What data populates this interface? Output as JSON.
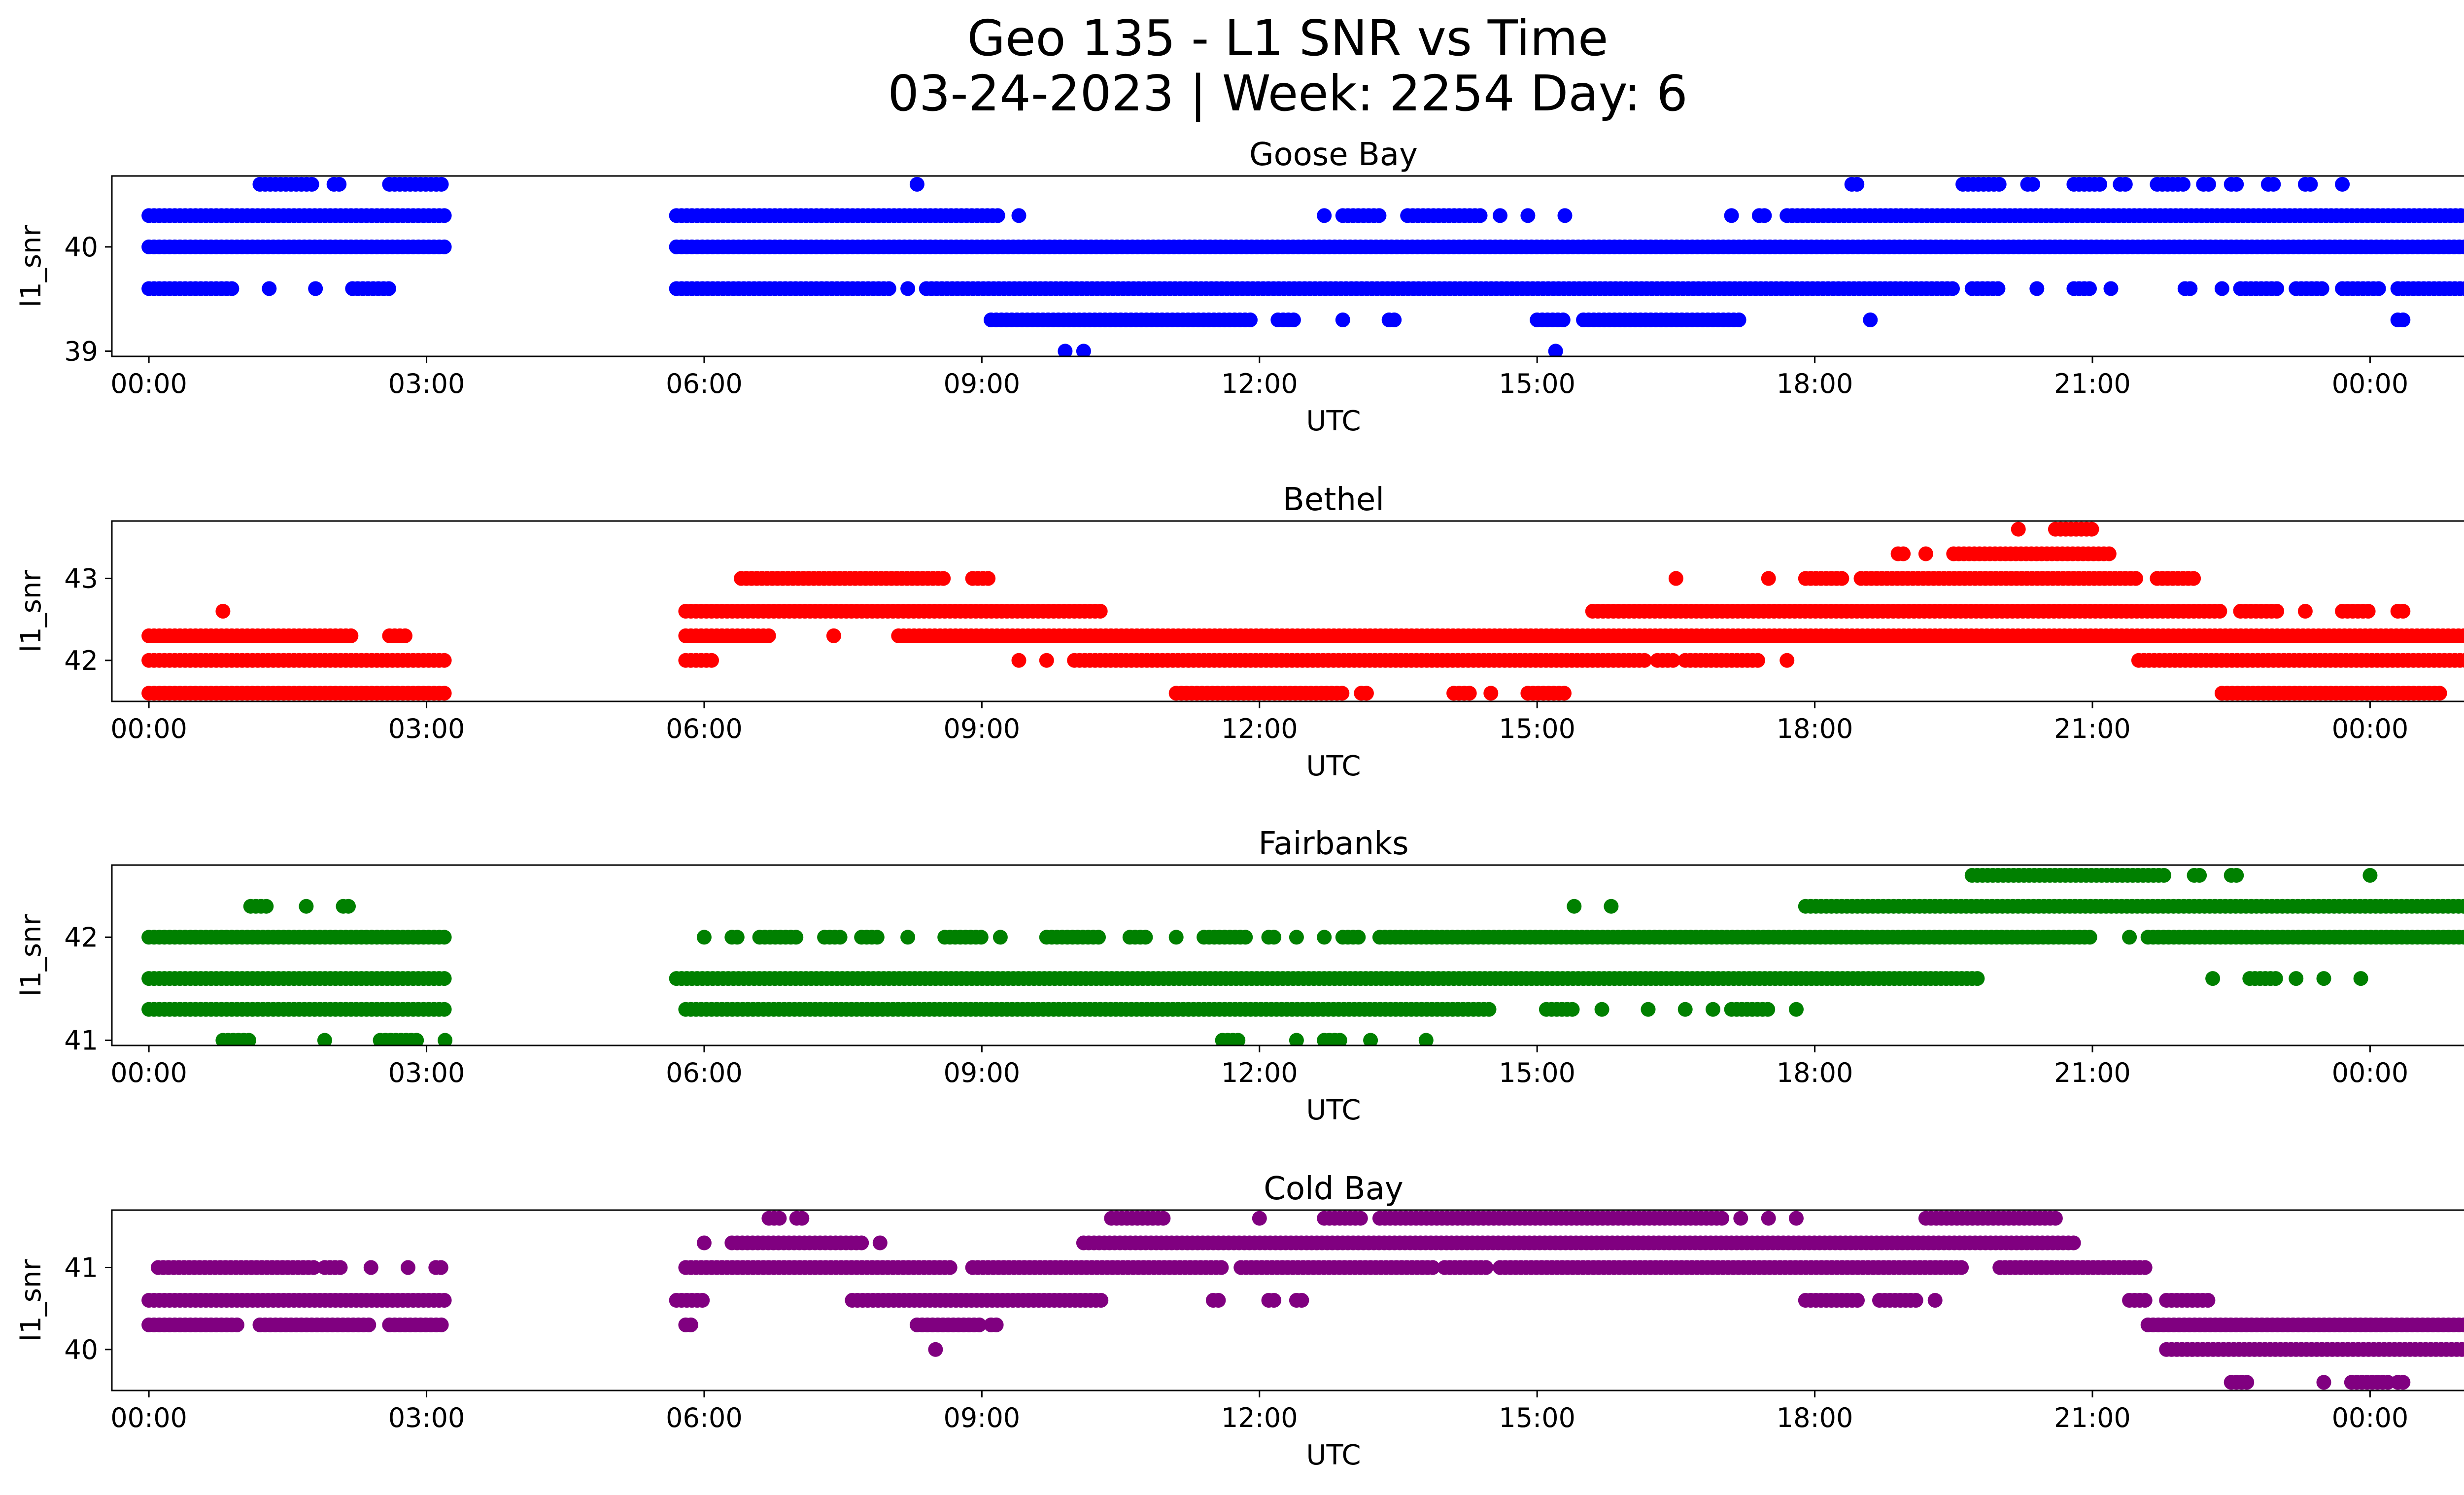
{
  "title_line1": "Geo 135 - L1 SNR vs Time",
  "title_line2": "03-24-2023 | Week: 2254 Day: 6",
  "chart_data": [
    {
      "type": "scatter",
      "title": "Goose Bay",
      "xlabel": "UTC",
      "ylabel": "l1_snr",
      "color": "#0000ff",
      "xlim": [
        -0.4,
        26.0
      ],
      "ylim": [
        38.95,
        40.68
      ],
      "xticks": [
        "00:00",
        "03:00",
        "06:00",
        "09:00",
        "12:00",
        "15:00",
        "18:00",
        "21:00",
        "00:00"
      ],
      "yticks": [
        39,
        40
      ],
      "bands": [
        {
          "y": 40.6,
          "segments": [
            [
              1.2,
              1.8
            ],
            [
              2.0,
              2.1
            ],
            [
              2.6,
              3.2
            ],
            [
              8.3,
              8.35
            ],
            [
              18.4,
              18.5
            ],
            [
              19.6,
              20.0
            ],
            [
              20.3,
              20.4
            ],
            [
              20.8,
              21.1
            ],
            [
              21.3,
              21.4
            ],
            [
              21.7,
              22.0
            ],
            [
              22.2,
              22.3
            ],
            [
              22.5,
              22.6
            ],
            [
              22.9,
              23.0
            ],
            [
              23.3,
              23.4
            ],
            [
              23.7,
              23.75
            ]
          ]
        },
        {
          "y": 40.3,
          "segments": [
            [
              0.0,
              3.2
            ],
            [
              5.7,
              9.2
            ],
            [
              9.4,
              9.45
            ],
            [
              12.7,
              12.75
            ],
            [
              12.9,
              13.3
            ],
            [
              13.6,
              14.4
            ],
            [
              14.6,
              14.65
            ],
            [
              14.9,
              14.95
            ],
            [
              15.3,
              15.35
            ],
            [
              17.1,
              17.15
            ],
            [
              17.4,
              17.5
            ],
            [
              17.7,
              26.0
            ]
          ]
        },
        {
          "y": 40.0,
          "segments": [
            [
              0.0,
              3.2
            ],
            [
              5.7,
              26.0
            ]
          ]
        },
        {
          "y": 39.6,
          "segments": [
            [
              0.0,
              0.9
            ],
            [
              1.3,
              1.35
            ],
            [
              1.8,
              1.85
            ],
            [
              2.2,
              2.6
            ],
            [
              5.7,
              8.0
            ],
            [
              8.2,
              8.25
            ],
            [
              8.4,
              19.5
            ],
            [
              19.7,
              20.0
            ],
            [
              20.4,
              20.45
            ],
            [
              20.8,
              21.0
            ],
            [
              21.2,
              21.25
            ],
            [
              22.0,
              22.1
            ],
            [
              22.4,
              22.45
            ],
            [
              22.6,
              23.0
            ],
            [
              23.2,
              23.5
            ],
            [
              23.7,
              24.1
            ],
            [
              24.3,
              26.0
            ]
          ]
        },
        {
          "y": 39.3,
          "segments": [
            [
              9.1,
              11.9
            ],
            [
              12.2,
              12.4
            ],
            [
              12.9,
              12.95
            ],
            [
              13.4,
              13.5
            ],
            [
              15.0,
              15.3
            ],
            [
              15.5,
              17.2
            ],
            [
              18.6,
              18.65
            ],
            [
              24.3,
              24.4
            ]
          ]
        },
        {
          "y": 39.0,
          "segments": [
            [
              9.9,
              9.95
            ],
            [
              10.1,
              10.15
            ],
            [
              15.2,
              15.25
            ]
          ]
        }
      ]
    },
    {
      "type": "scatter",
      "title": "Bethel",
      "xlabel": "UTC",
      "ylabel": "l1_snr",
      "color": "#ff0000",
      "xlim": [
        -0.4,
        26.0
      ],
      "ylim": [
        41.5,
        43.7
      ],
      "xticks": [
        "00:00",
        "03:00",
        "06:00",
        "09:00",
        "12:00",
        "15:00",
        "18:00",
        "21:00",
        "00:00"
      ],
      "yticks": [
        42,
        43
      ],
      "bands": [
        {
          "y": 43.6,
          "segments": [
            [
              20.2,
              20.25
            ],
            [
              20.6,
              21.0
            ]
          ]
        },
        {
          "y": 43.3,
          "segments": [
            [
              18.9,
              19.0
            ],
            [
              19.2,
              19.25
            ],
            [
              19.5,
              21.2
            ]
          ]
        },
        {
          "y": 43.0,
          "segments": [
            [
              6.4,
              8.6
            ],
            [
              8.9,
              9.1
            ],
            [
              16.5,
              16.55
            ],
            [
              17.5,
              17.55
            ],
            [
              17.9,
              18.3
            ],
            [
              18.5,
              21.5
            ],
            [
              21.7,
              22.1
            ]
          ]
        },
        {
          "y": 42.6,
          "segments": [
            [
              0.8,
              0.85
            ],
            [
              5.8,
              10.3
            ],
            [
              15.6,
              22.4
            ],
            [
              22.6,
              23.0
            ],
            [
              23.3,
              23.35
            ],
            [
              23.7,
              24.0
            ],
            [
              24.3,
              24.4
            ]
          ]
        },
        {
          "y": 42.3,
          "segments": [
            [
              0.0,
              2.2
            ],
            [
              2.6,
              2.8
            ],
            [
              5.8,
              6.7
            ],
            [
              7.4,
              7.45
            ],
            [
              8.1,
              26.0
            ]
          ]
        },
        {
          "y": 42.0,
          "segments": [
            [
              0.0,
              3.2
            ],
            [
              5.8,
              6.1
            ],
            [
              9.4,
              9.45
            ],
            [
              9.7,
              9.75
            ],
            [
              10.0,
              16.2
            ],
            [
              16.3,
              16.5
            ],
            [
              16.6,
              17.4
            ],
            [
              17.7,
              17.75
            ],
            [
              21.5,
              26.0
            ]
          ]
        },
        {
          "y": 41.6,
          "segments": [
            [
              0.0,
              3.2
            ],
            [
              11.1,
              12.9
            ],
            [
              13.1,
              13.2
            ],
            [
              14.1,
              14.3
            ],
            [
              14.5,
              14.55
            ],
            [
              14.9,
              15.3
            ],
            [
              22.4,
              24.8
            ]
          ]
        }
      ]
    },
    {
      "type": "scatter",
      "title": "Fairbanks",
      "xlabel": "UTC",
      "ylabel": "l1_snr",
      "color": "#008000",
      "xlim": [
        -0.4,
        26.0
      ],
      "ylim": [
        40.95,
        42.7
      ],
      "xticks": [
        "00:00",
        "03:00",
        "06:00",
        "09:00",
        "12:00",
        "15:00",
        "18:00",
        "21:00",
        "00:00"
      ],
      "yticks": [
        41,
        42
      ],
      "bands": [
        {
          "y": 42.6,
          "segments": [
            [
              19.7,
              21.8
            ],
            [
              22.1,
              22.2
            ],
            [
              22.5,
              22.6
            ],
            [
              24.0,
              24.05
            ]
          ]
        },
        {
          "y": 42.3,
          "segments": [
            [
              1.1,
              1.3
            ],
            [
              1.7,
              1.75
            ],
            [
              2.1,
              2.2
            ],
            [
              15.4,
              15.45
            ],
            [
              15.8,
              15.85
            ],
            [
              17.9,
              26.0
            ]
          ]
        },
        {
          "y": 42.0,
          "segments": [
            [
              0.0,
              3.2
            ],
            [
              6.0,
              6.05
            ],
            [
              6.3,
              6.4
            ],
            [
              6.6,
              7.0
            ],
            [
              7.3,
              7.5
            ],
            [
              7.7,
              7.9
            ],
            [
              8.2,
              8.25
            ],
            [
              8.6,
              9.0
            ],
            [
              9.2,
              9.25
            ],
            [
              9.7,
              10.3
            ],
            [
              10.6,
              10.8
            ],
            [
              11.1,
              11.15
            ],
            [
              11.4,
              11.9
            ],
            [
              12.1,
              12.2
            ],
            [
              12.4,
              12.45
            ],
            [
              12.7,
              12.75
            ],
            [
              12.9,
              13.1
            ],
            [
              13.3,
              21.0
            ],
            [
              21.4,
              21.45
            ],
            [
              21.6,
              26.0
            ]
          ]
        },
        {
          "y": 41.6,
          "segments": [
            [
              0.0,
              3.2
            ],
            [
              5.7,
              19.8
            ],
            [
              22.3,
              22.35
            ],
            [
              22.7,
              23.0
            ],
            [
              23.2,
              23.25
            ],
            [
              23.5,
              23.55
            ],
            [
              23.9,
              23.95
            ]
          ]
        },
        {
          "y": 41.3,
          "segments": [
            [
              0.0,
              3.2
            ],
            [
              5.8,
              14.5
            ],
            [
              15.1,
              15.4
            ],
            [
              15.7,
              15.75
            ],
            [
              16.2,
              16.25
            ],
            [
              16.6,
              16.65
            ],
            [
              16.9,
              16.95
            ],
            [
              17.1,
              17.5
            ],
            [
              17.8,
              17.85
            ]
          ]
        },
        {
          "y": 41.0,
          "segments": [
            [
              0.8,
              1.1
            ],
            [
              1.9,
              1.95
            ],
            [
              2.5,
              2.9
            ],
            [
              3.2,
              3.25
            ],
            [
              11.6,
              11.8
            ],
            [
              12.4,
              12.45
            ],
            [
              12.7,
              12.9
            ],
            [
              13.2,
              13.25
            ],
            [
              13.8,
              13.85
            ]
          ]
        }
      ]
    },
    {
      "type": "scatter",
      "title": "Cold Bay",
      "xlabel": "UTC",
      "ylabel": "l1_snr",
      "color": "#800080",
      "xlim": [
        -0.4,
        26.0
      ],
      "ylim": [
        39.5,
        41.7
      ],
      "xticks": [
        "00:00",
        "03:00",
        "06:00",
        "09:00",
        "12:00",
        "15:00",
        "18:00",
        "21:00",
        "00:00"
      ],
      "yticks": [
        40,
        41
      ],
      "bands": [
        {
          "y": 41.6,
          "segments": [
            [
              6.7,
              6.85
            ],
            [
              7.0,
              7.1
            ],
            [
              10.4,
              11.0
            ],
            [
              12.0,
              12.05
            ],
            [
              12.7,
              13.1
            ],
            [
              13.3,
              17.0
            ],
            [
              17.2,
              17.25
            ],
            [
              17.5,
              17.55
            ],
            [
              17.8,
              17.85
            ],
            [
              19.2,
              20.6
            ]
          ]
        },
        {
          "y": 41.3,
          "segments": [
            [
              6.0,
              6.05
            ],
            [
              6.3,
              7.7
            ],
            [
              7.9,
              7.95
            ],
            [
              10.1,
              20.8
            ]
          ]
        },
        {
          "y": 41.0,
          "segments": [
            [
              0.1,
              1.8
            ],
            [
              1.9,
              2.1
            ],
            [
              2.4,
              2.45
            ],
            [
              2.8,
              2.85
            ],
            [
              3.1,
              3.2
            ],
            [
              5.8,
              8.7
            ],
            [
              8.9,
              11.6
            ],
            [
              11.8,
              13.9
            ],
            [
              14.0,
              14.5
            ],
            [
              14.6,
              19.6
            ],
            [
              20.0,
              21.6
            ]
          ]
        },
        {
          "y": 40.6,
          "segments": [
            [
              0.0,
              3.2
            ],
            [
              5.7,
              6.0
            ],
            [
              7.6,
              10.3
            ],
            [
              11.5,
              11.6
            ],
            [
              12.1,
              12.2
            ],
            [
              12.4,
              12.5
            ],
            [
              17.9,
              18.5
            ],
            [
              18.7,
              19.1
            ],
            [
              19.3,
              19.35
            ],
            [
              21.4,
              21.6
            ],
            [
              21.8,
              22.3
            ]
          ]
        },
        {
          "y": 40.3,
          "segments": [
            [
              0.0,
              1.0
            ],
            [
              1.2,
              2.4
            ],
            [
              2.6,
              3.2
            ],
            [
              5.8,
              5.9
            ],
            [
              8.3,
              9.0
            ],
            [
              9.1,
              9.2
            ],
            [
              21.6,
              26.0
            ]
          ]
        },
        {
          "y": 40.0,
          "segments": [
            [
              8.5,
              8.55
            ],
            [
              21.8,
              26.0
            ]
          ]
        },
        {
          "y": 39.6,
          "segments": [
            [
              22.5,
              22.7
            ],
            [
              23.5,
              23.55
            ],
            [
              23.8,
              24.2
            ],
            [
              24.3,
              24.4
            ]
          ]
        }
      ]
    }
  ]
}
